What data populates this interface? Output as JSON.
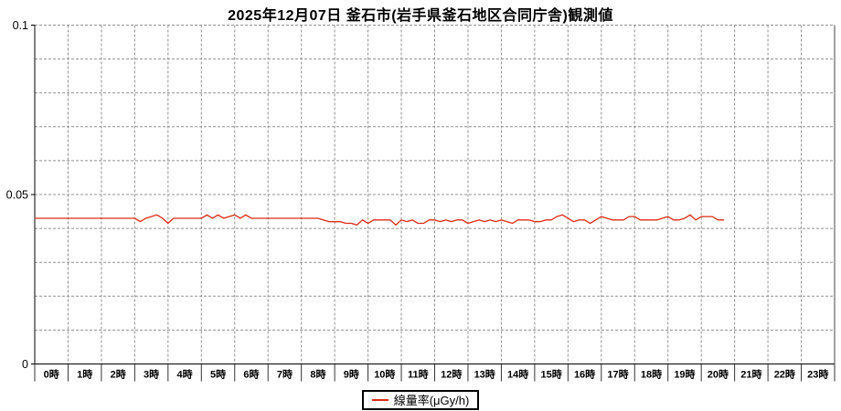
{
  "page": {
    "background": "#ffffff"
  },
  "chart_data": {
    "type": "line",
    "title": "2025年12月07日 釜石市(岩手県釜石地区合同庁舎)観測値",
    "xlabel": "",
    "ylabel": "",
    "ylim": [
      0,
      0.1
    ],
    "y_grid_interval": 0.01,
    "y_ticks": [
      {
        "value": 0,
        "label": "0"
      },
      {
        "value": 0.05,
        "label": "0.05"
      },
      {
        "value": 0.1,
        "label": "0.1"
      }
    ],
    "x_hours": 24,
    "x_tick_labels": [
      "0時",
      "1時",
      "2時",
      "3時",
      "4時",
      "5時",
      "6時",
      "7時",
      "8時",
      "9時",
      "10時",
      "11時",
      "12時",
      "13時",
      "14時",
      "15時",
      "16時",
      "17時",
      "18時",
      "19時",
      "20時",
      "21時",
      "22時",
      "23時"
    ],
    "grid": true,
    "grid_color": "#909090",
    "axis_color": "#000000",
    "legend_position": "bottom-center",
    "series": [
      {
        "name": "線量率(μGy/h)",
        "color": "#dc2b14",
        "start_time": "0:00",
        "interval_minutes": 10,
        "values": [
          0.043,
          0.043,
          0.043,
          0.043,
          0.043,
          0.043,
          0.043,
          0.043,
          0.043,
          0.043,
          0.043,
          0.043,
          0.043,
          0.043,
          0.043,
          0.043,
          0.043,
          0.043,
          0.043,
          0.042,
          0.043,
          0.0435,
          0.044,
          0.043,
          0.0415,
          0.043,
          0.043,
          0.043,
          0.043,
          0.043,
          0.043,
          0.044,
          0.043,
          0.044,
          0.043,
          0.0435,
          0.044,
          0.043,
          0.044,
          0.043,
          0.043,
          0.043,
          0.043,
          0.043,
          0.043,
          0.043,
          0.043,
          0.043,
          0.043,
          0.043,
          0.043,
          0.043,
          0.0425,
          0.042,
          0.042,
          0.042,
          0.0415,
          0.0415,
          0.041,
          0.0425,
          0.0415,
          0.0425,
          0.0425,
          0.0425,
          0.0425,
          0.041,
          0.0425,
          0.042,
          0.0425,
          0.0415,
          0.0415,
          0.0425,
          0.0425,
          0.042,
          0.0425,
          0.042,
          0.0425,
          0.0425,
          0.0415,
          0.042,
          0.0425,
          0.042,
          0.0425,
          0.042,
          0.0425,
          0.042,
          0.0415,
          0.0425,
          0.0425,
          0.0425,
          0.042,
          0.042,
          0.0425,
          0.0425,
          0.0435,
          0.044,
          0.043,
          0.042,
          0.0425,
          0.0425,
          0.0415,
          0.0425,
          0.0435,
          0.043,
          0.0425,
          0.0425,
          0.0425,
          0.0435,
          0.0435,
          0.0425,
          0.0425,
          0.0425,
          0.0425,
          0.043,
          0.0435,
          0.0425,
          0.0425,
          0.043,
          0.044,
          0.0425,
          0.0435,
          0.0435,
          0.0435,
          0.0425,
          0.0425
        ]
      }
    ]
  }
}
